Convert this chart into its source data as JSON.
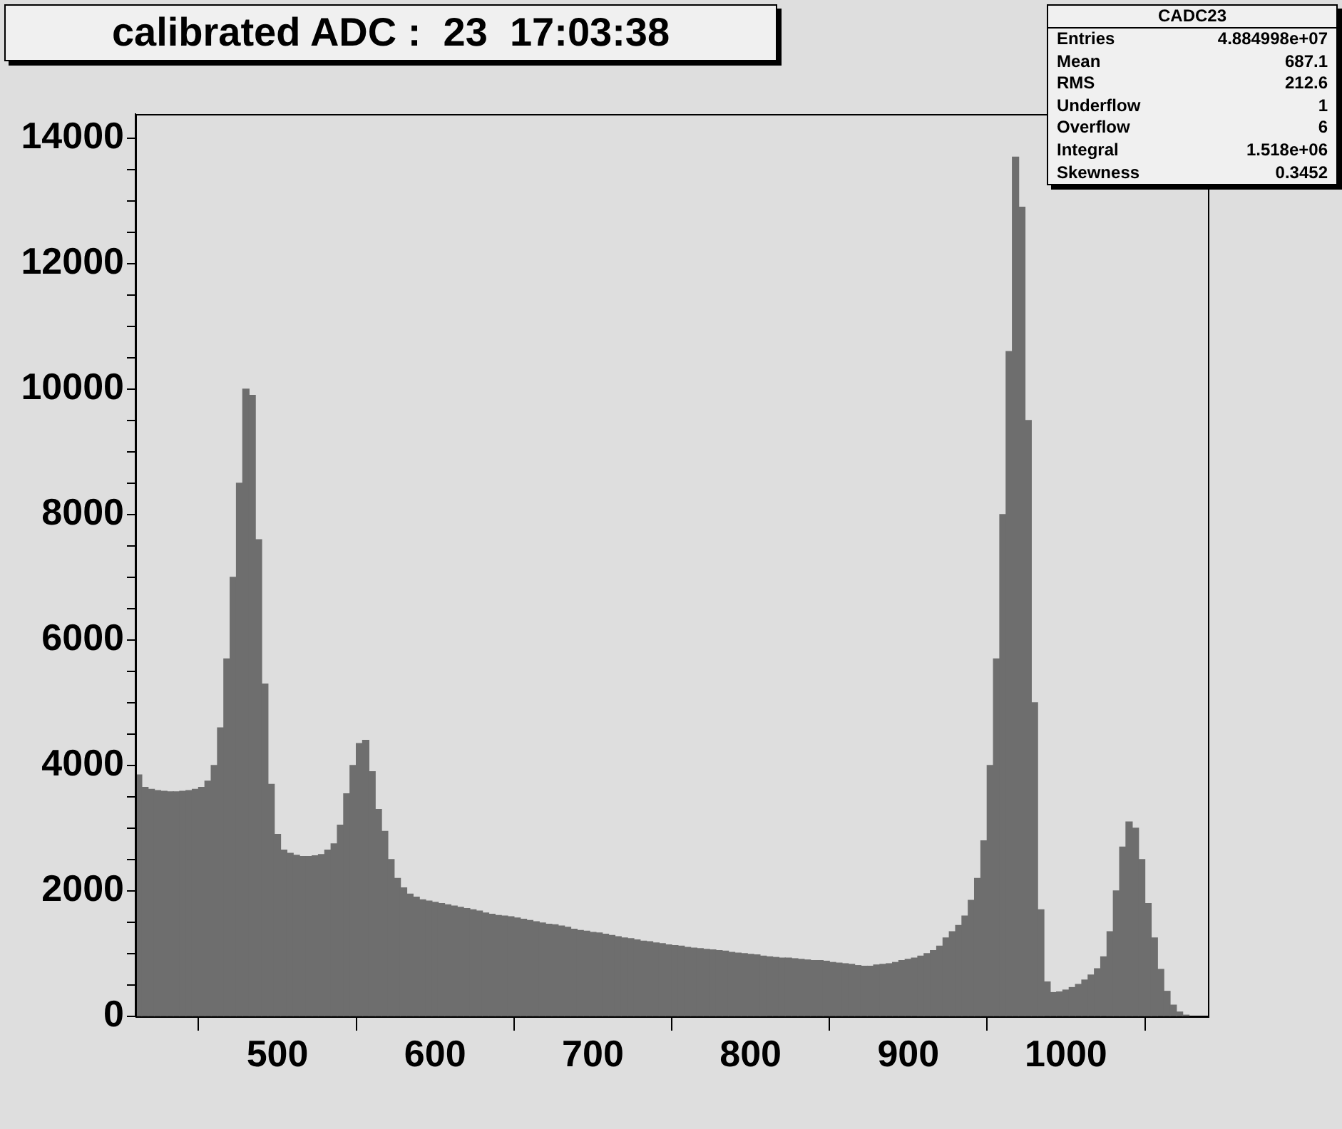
{
  "chart_data": {
    "type": "histogram",
    "title": "calibrated ADC :  23  17:03:38",
    "annotations": [
      "CADC23",
      "Entries",
      "4.884998e+07",
      "Mean",
      "687.1",
      "RMS",
      "212.6",
      "Underflow",
      "1",
      "Overflow",
      "6",
      "Integral",
      "1.518e+06",
      "Skewness",
      "0.3452"
    ],
    "color": "#6e6e6e",
    "bins": [
      410,
      414,
      418,
      422,
      426,
      430,
      434,
      438,
      442,
      446,
      450,
      454,
      458,
      462,
      466,
      470,
      474,
      478,
      482,
      486,
      490,
      494,
      498,
      502,
      506,
      510,
      514,
      518,
      522,
      526,
      530,
      534,
      538,
      542,
      546,
      550,
      554,
      558,
      562,
      566,
      570,
      574,
      578,
      582,
      586,
      590,
      594,
      598,
      602,
      606,
      610,
      614,
      618,
      622,
      626,
      630,
      634,
      638,
      642,
      646,
      650,
      654,
      658,
      662,
      666,
      670,
      674,
      678,
      682,
      686,
      690,
      694,
      698,
      702,
      706,
      710,
      714,
      718,
      722,
      726,
      730,
      734,
      738,
      742,
      746,
      750,
      754,
      758,
      762,
      766,
      770,
      774,
      778,
      782,
      786,
      790,
      794,
      798,
      802,
      806,
      810,
      814,
      818,
      822,
      826,
      830,
      834,
      838,
      842,
      846,
      850,
      854,
      858,
      862,
      866,
      870,
      874,
      878,
      882,
      886,
      890,
      894,
      898,
      902,
      906,
      910,
      914,
      918,
      922,
      926,
      930,
      934,
      938,
      942,
      946,
      950,
      954,
      958,
      962,
      966,
      970,
      974,
      978,
      982,
      986,
      990,
      994,
      998,
      1002,
      1006,
      1010,
      1014,
      1018,
      1022,
      1026,
      1030,
      1034,
      1038,
      1042,
      1046,
      1050,
      1054,
      1058,
      1062,
      1066,
      1070,
      1074,
      1078
    ],
    "values": [
      3850,
      3650,
      3620,
      3600,
      3590,
      3580,
      3580,
      3590,
      3600,
      3620,
      3650,
      3750,
      4000,
      4600,
      5700,
      7000,
      8500,
      10000,
      9900,
      7600,
      5300,
      3700,
      2900,
      2650,
      2600,
      2570,
      2550,
      2550,
      2560,
      2580,
      2650,
      2750,
      3050,
      3550,
      4000,
      4350,
      4400,
      3900,
      3300,
      2950,
      2500,
      2200,
      2050,
      1950,
      1900,
      1860,
      1840,
      1820,
      1800,
      1780,
      1760,
      1740,
      1720,
      1700,
      1680,
      1650,
      1630,
      1610,
      1600,
      1590,
      1570,
      1550,
      1530,
      1510,
      1490,
      1470,
      1460,
      1440,
      1420,
      1390,
      1370,
      1360,
      1340,
      1330,
      1310,
      1290,
      1270,
      1250,
      1240,
      1220,
      1200,
      1190,
      1170,
      1160,
      1140,
      1130,
      1120,
      1100,
      1090,
      1080,
      1070,
      1060,
      1050,
      1040,
      1020,
      1010,
      1000,
      990,
      980,
      960,
      950,
      940,
      930,
      930,
      920,
      910,
      900,
      890,
      890,
      880,
      860,
      850,
      840,
      830,
      810,
      800,
      800,
      820,
      830,
      840,
      860,
      890,
      910,
      930,
      960,
      1000,
      1050,
      1120,
      1250,
      1350,
      1450,
      1600,
      1850,
      2200,
      2800,
      4000,
      5700,
      8000,
      10600,
      13700,
      12900,
      9500,
      5000,
      1700,
      550,
      380,
      390,
      420,
      460,
      510,
      580,
      660,
      760,
      950,
      1350,
      2000,
      2700,
      3100,
      3000,
      2500,
      1800,
      1250,
      750,
      400,
      180,
      70,
      20
    ],
    "xlim": [
      410,
      1090
    ],
    "xticks": [
      500,
      600,
      700,
      800,
      900,
      1000
    ],
    "ylim": [
      0,
      14385
    ],
    "yticks": [
      0,
      {
        "value": 500,
        "label": null
      },
      {
        "value": 1000,
        "label": null
      },
      {
        "value": 1500,
        "label": null
      },
      2000,
      {
        "value": 2500,
        "label": null
      },
      {
        "value": 3000,
        "label": null
      },
      {
        "value": 3500,
        "label": null
      },
      4000,
      {
        "value": 4500,
        "label": null
      },
      {
        "value": 5000,
        "label": null
      },
      {
        "value": 5500,
        "label": null
      },
      6000,
      {
        "value": 6500,
        "label": null
      },
      {
        "value": 7000,
        "label": null
      },
      {
        "value": 7500,
        "label": null
      },
      8000,
      {
        "value": 8500,
        "label": null
      },
      {
        "value": 9000,
        "label": null
      },
      {
        "value": 9500,
        "label": null
      },
      10000,
      {
        "value": 10500,
        "label": null
      },
      {
        "value": 11000,
        "label": null
      },
      {
        "value": 11500,
        "label": null
      },
      12000,
      {
        "value": 12500,
        "label": null
      },
      {
        "value": 13000,
        "label": null
      },
      {
        "value": 13500,
        "label": null
      },
      14000
    ]
  }
}
